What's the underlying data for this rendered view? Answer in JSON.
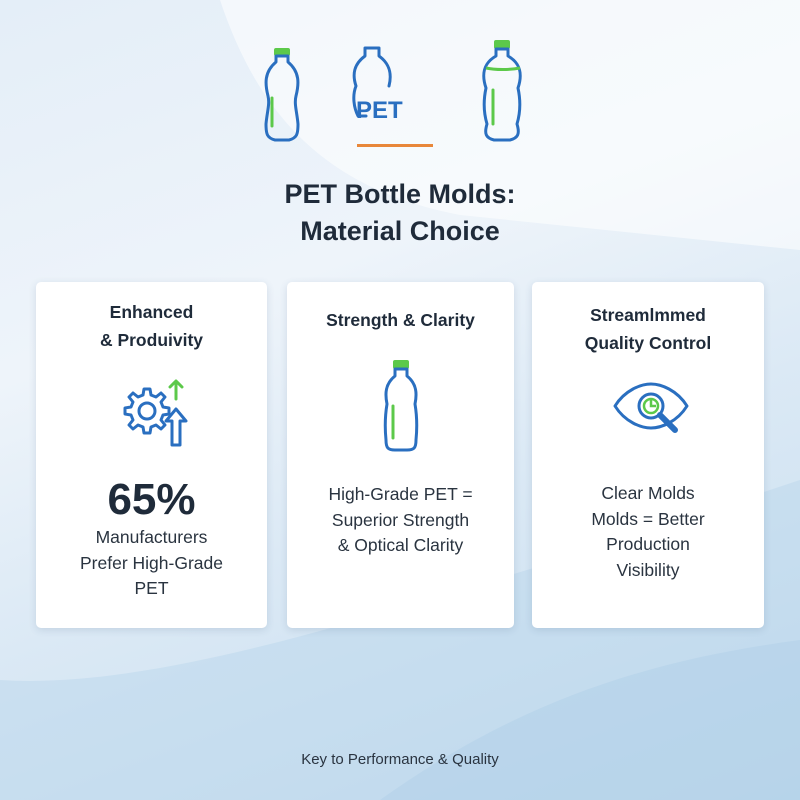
{
  "header": {
    "pet_label": "PET",
    "title_line1": "PET Bottle Molds:",
    "title_line2": "Material Choice"
  },
  "cards": [
    {
      "title_line1": "Enhanced",
      "title_line2": "& Produivity",
      "icon": "gear-arrow-up-icon",
      "stat": "65%",
      "text_lines": [
        "Manufacturers",
        "Prefer High-Grade",
        "PET"
      ]
    },
    {
      "title_line1": "Strength & Clarity",
      "icon": "bottle-icon",
      "text_lines": [
        "High-Grade PET =",
        "Superior Strength",
        "& Optical Clarity"
      ]
    },
    {
      "title_line1": "Streamlmmed",
      "title_line2": "Quality Control",
      "icon": "eye-magnifier-icon",
      "text_lines": [
        "Clear Molds",
        "Molds = Better",
        "Production",
        "Visibility"
      ]
    }
  ],
  "footer": {
    "text": "Key to Performance & Quality"
  },
  "colors": {
    "icon_blue": "#2a6fc0",
    "accent_green": "#5cc94a",
    "divider_orange": "#e8873a",
    "text_dark": "#1f2b3a"
  }
}
